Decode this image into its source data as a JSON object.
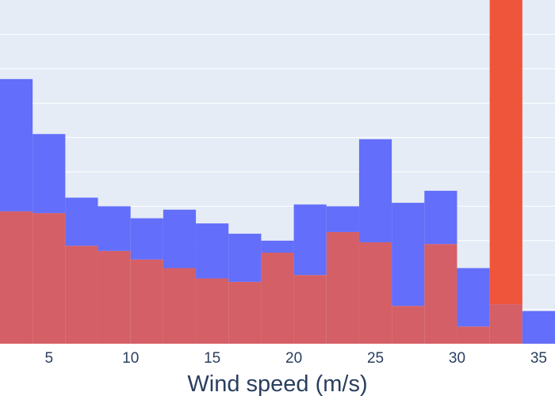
{
  "chart_data": {
    "type": "bar",
    "barmode": "overlay",
    "title": "",
    "xlabel": "Wind speed (m/s)",
    "ylabel": "",
    "xlim": [
      2,
      36
    ],
    "ylim": [
      0,
      10
    ],
    "grid": true,
    "y_gridlines": [
      1,
      2,
      3,
      4,
      5,
      6,
      7,
      8,
      9
    ],
    "x_ticks": [
      5,
      10,
      15,
      20,
      25,
      30,
      35
    ],
    "x_tick_labels": [
      "5",
      "10",
      "15",
      "20",
      "25",
      "30",
      "35"
    ],
    "bin_edges": [
      2,
      4,
      6,
      8,
      10,
      12,
      14,
      16,
      18,
      20,
      22,
      24,
      26,
      28,
      30,
      32,
      34,
      36
    ],
    "series": [
      {
        "color": "#636efa",
        "values": [
          7.7,
          6.1,
          4.25,
          4.0,
          3.65,
          3.9,
          3.5,
          3.2,
          3.0,
          4.05,
          4.0,
          5.95,
          4.1,
          4.45,
          2.2,
          1.15,
          0.95
        ]
      },
      {
        "color": "#ef553b",
        "values": [
          3.85,
          3.8,
          2.85,
          2.7,
          2.45,
          2.2,
          1.9,
          1.8,
          2.65,
          2.0,
          3.25,
          2.95,
          1.1,
          2.9,
          0.5,
          10.5,
          0
        ]
      }
    ]
  },
  "colors": {
    "plot_background": "#e5ecf6",
    "gridline": "#ffffff",
    "text": "#2a3f5f",
    "overlap_fill": "#d55f66"
  }
}
